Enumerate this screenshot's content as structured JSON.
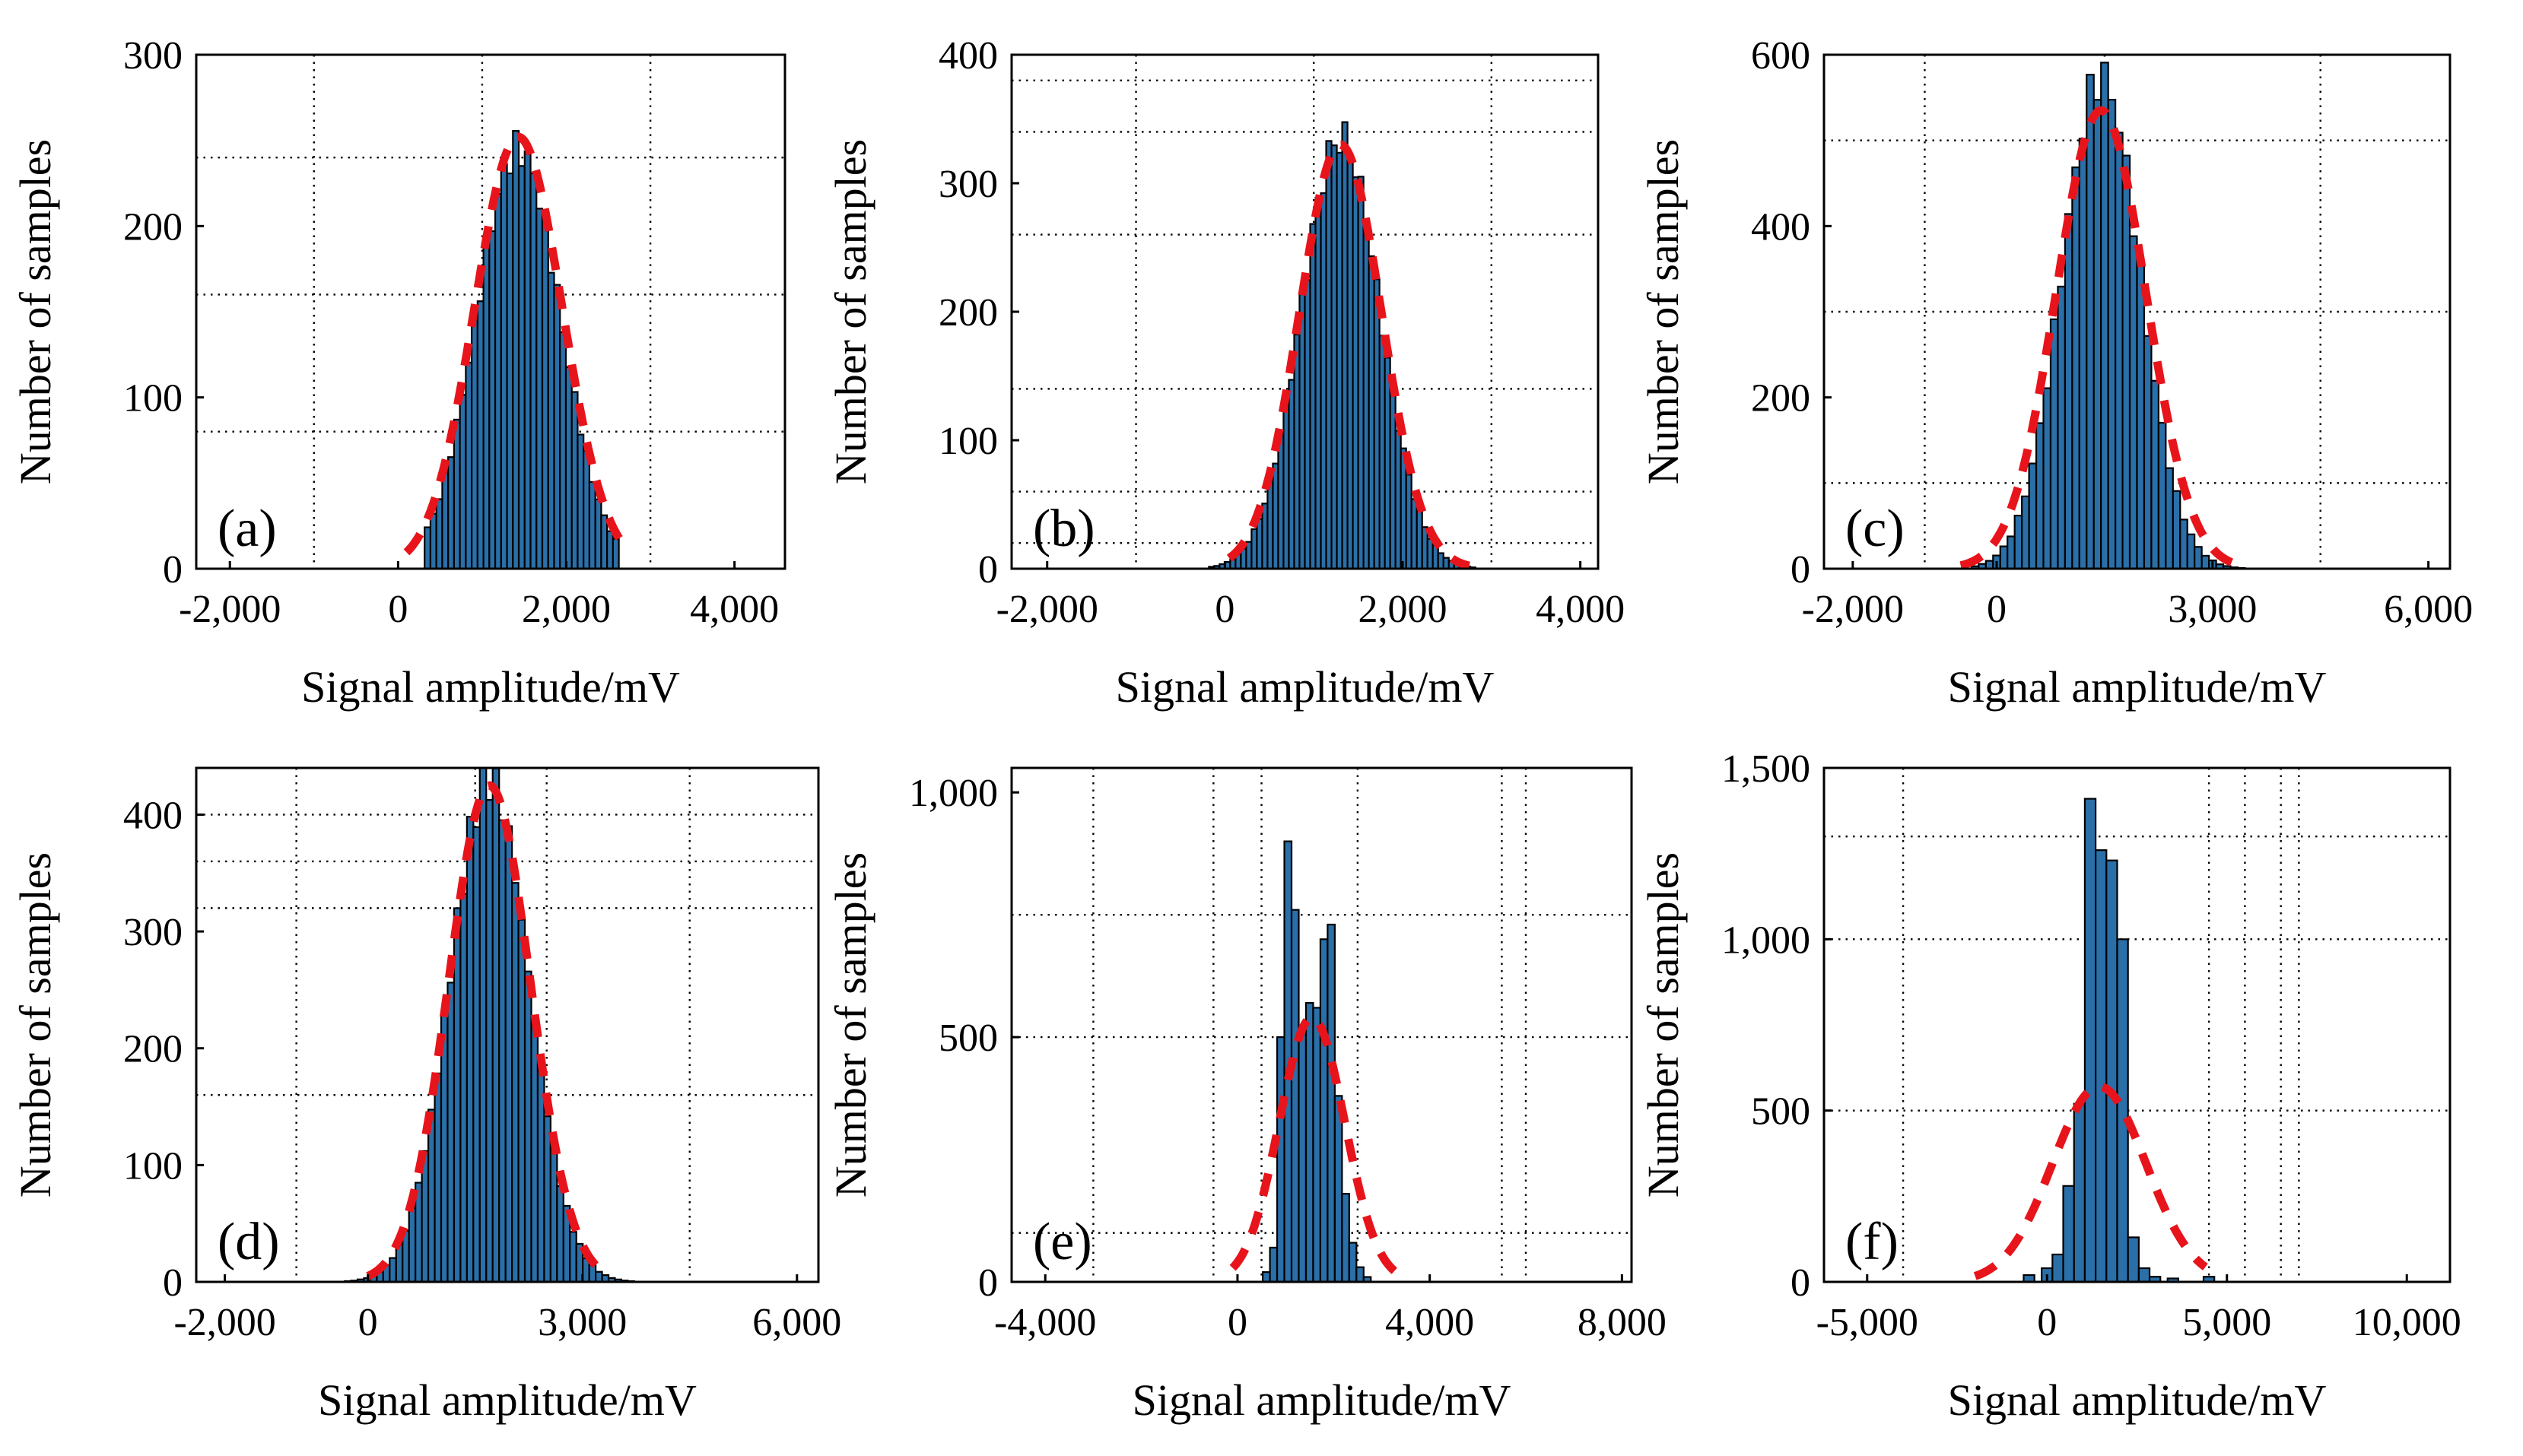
{
  "figure": {
    "fit_color": "#e8141b",
    "bar_color": "#2a6fa8",
    "bar_edge_color": "#000000",
    "background": "#ffffff"
  },
  "chart_data": [
    {
      "panel": "a",
      "label": "(a)",
      "type": "bar",
      "xlabel": "Signal amplitude/mV",
      "ylabel": "Number of samples",
      "xlim": [
        -2400,
        4600
      ],
      "ylim": [
        0,
        300
      ],
      "xticks": [
        -2000,
        0,
        2000,
        4000
      ],
      "xtick_labels": [
        "-2,000",
        "0",
        "2,000",
        "4,000"
      ],
      "yticks": [
        0,
        100,
        200,
        300
      ],
      "ytick_labels": [
        "0",
        "100",
        "200",
        "300"
      ],
      "grid_x": [
        -1000,
        1000,
        3000
      ],
      "grid_y": [
        80,
        160,
        240
      ],
      "hist": {
        "mu": 1430,
        "sigma": 500,
        "peak": 245,
        "bin_width": 70,
        "range": [
          350,
          2650
        ]
      },
      "fit": {
        "mu": 1430,
        "sigma": 520,
        "peak": 252,
        "range": [
          100,
          2750
        ]
      }
    },
    {
      "panel": "b",
      "label": "(b)",
      "type": "bar",
      "xlabel": "Signal amplitude/mV",
      "ylabel": "Number of samples",
      "xlim": [
        -2400,
        4200
      ],
      "ylim": [
        0,
        400
      ],
      "xticks": [
        -2000,
        0,
        2000,
        4000
      ],
      "xtick_labels": [
        "-2,000",
        "0",
        "2,000",
        "4,000"
      ],
      "yticks": [
        0,
        100,
        200,
        300,
        400
      ],
      "ytick_labels": [
        "0",
        "100",
        "200",
        "300",
        "400"
      ],
      "grid_x": [
        -1000,
        1000,
        3000
      ],
      "grid_y": [
        20,
        60,
        140,
        260,
        340,
        380
      ],
      "hist": {
        "mu": 1300,
        "sigma": 440,
        "peak": 335,
        "bin_width": 60,
        "range": [
          -150,
          2800
        ]
      },
      "fit": {
        "mu": 1300,
        "sigma": 460,
        "peak": 330,
        "range": [
          50,
          2750
        ]
      }
    },
    {
      "panel": "c",
      "label": "(c)",
      "type": "bar",
      "xlabel": "Signal amplitude/mV",
      "ylabel": "Number of samples",
      "xlim": [
        -2400,
        6300
      ],
      "ylim": [
        0,
        600
      ],
      "xticks": [
        -2000,
        0,
        3000,
        6000
      ],
      "xtick_labels": [
        "-2,000",
        "0",
        "3,000",
        "6,000"
      ],
      "yticks": [
        0,
        200,
        400,
        600
      ],
      "ytick_labels": [
        "0",
        "200",
        "400",
        "600"
      ],
      "grid_x": [
        -1000,
        1500,
        4500
      ],
      "grid_y": [
        100,
        300,
        500
      ],
      "hist": {
        "mu": 1450,
        "sigma": 540,
        "peak": 575,
        "bin_width": 100,
        "range": [
          -300,
          5500
        ]
      },
      "fit": {
        "mu": 1450,
        "sigma": 620,
        "peak": 535,
        "range": [
          -500,
          3400
        ]
      }
    },
    {
      "panel": "d",
      "label": "(d)",
      "type": "bar",
      "xlabel": "Signal amplitude/mV",
      "ylabel": "Number of samples",
      "xlim": [
        -2400,
        6300
      ],
      "ylim": [
        0,
        440
      ],
      "xticks": [
        -2000,
        0,
        3000,
        6000
      ],
      "xtick_labels": [
        "-2,000",
        "0",
        "3,000",
        "6,000"
      ],
      "yticks": [
        0,
        100,
        200,
        300,
        400
      ],
      "ytick_labels": [
        "0",
        "100",
        "200",
        "300",
        "400"
      ],
      "grid_x": [
        -1000,
        1500,
        2500,
        4500
      ],
      "grid_y": [
        160,
        320,
        360,
        400
      ],
      "hist": {
        "mu": 1700,
        "sigma": 550,
        "peak": 430,
        "bin_width": 90,
        "range": [
          -1000,
          5000
        ]
      },
      "fit": {
        "mu": 1700,
        "sigma": 570,
        "peak": 425,
        "range": [
          0,
          3300
        ]
      }
    },
    {
      "panel": "e",
      "label": "(e)",
      "type": "bar",
      "xlabel": "Signal amplitude/mV",
      "ylabel": "Number of samples",
      "xlim": [
        -4700,
        8200
      ],
      "ylim": [
        0,
        1050
      ],
      "xticks": [
        -4000,
        0,
        4000,
        8000
      ],
      "xtick_labels": [
        "-4,000",
        "0",
        "4,000",
        "8,000"
      ],
      "yticks": [
        0,
        500,
        1000
      ],
      "ytick_labels": [
        "0",
        "500",
        "1,000"
      ],
      "grid_x": [
        -3000,
        -500,
        500,
        2500,
        5500,
        6000
      ],
      "grid_y": [
        100,
        500,
        750
      ],
      "hist_bins": [
        [
          600,
          20
        ],
        [
          750,
          70
        ],
        [
          900,
          500
        ],
        [
          1050,
          900
        ],
        [
          1200,
          760
        ],
        [
          1350,
          520
        ],
        [
          1500,
          570
        ],
        [
          1650,
          560
        ],
        [
          1800,
          700
        ],
        [
          1950,
          730
        ],
        [
          2100,
          380
        ],
        [
          2250,
          180
        ],
        [
          2400,
          80
        ],
        [
          2550,
          30
        ],
        [
          2700,
          10
        ]
      ],
      "fit": {
        "mu": 1550,
        "sigma": 680,
        "peak": 540,
        "range": [
          -100,
          3300
        ]
      }
    },
    {
      "panel": "f",
      "label": "(f)",
      "type": "bar",
      "xlabel": "Signal amplitude/mV",
      "ylabel": "Number of samples",
      "xlim": [
        -6200,
        11200
      ],
      "ylim": [
        0,
        1500
      ],
      "xticks": [
        -5000,
        0,
        5000,
        10000
      ],
      "xtick_labels": [
        "-5,000",
        "0",
        "5,000",
        "10,000"
      ],
      "yticks": [
        0,
        500,
        1000,
        1500
      ],
      "ytick_labels": [
        "0",
        "500",
        "1,000",
        "1,500"
      ],
      "grid_x": [
        -4000,
        4500,
        5500,
        6500,
        7000
      ],
      "grid_y": [
        500,
        1000,
        1300
      ],
      "hist_bins": [
        [
          -500,
          20
        ],
        [
          0,
          40
        ],
        [
          300,
          80
        ],
        [
          600,
          280
        ],
        [
          900,
          520
        ],
        [
          1200,
          1410
        ],
        [
          1500,
          1260
        ],
        [
          1800,
          1230
        ],
        [
          2100,
          1000
        ],
        [
          2400,
          130
        ],
        [
          2700,
          40
        ],
        [
          3000,
          15
        ],
        [
          3500,
          10
        ],
        [
          4500,
          15
        ]
      ],
      "fit": {
        "mu": 1450,
        "sigma": 1300,
        "peak": 570,
        "range": [
          -2000,
          4400
        ]
      }
    }
  ]
}
